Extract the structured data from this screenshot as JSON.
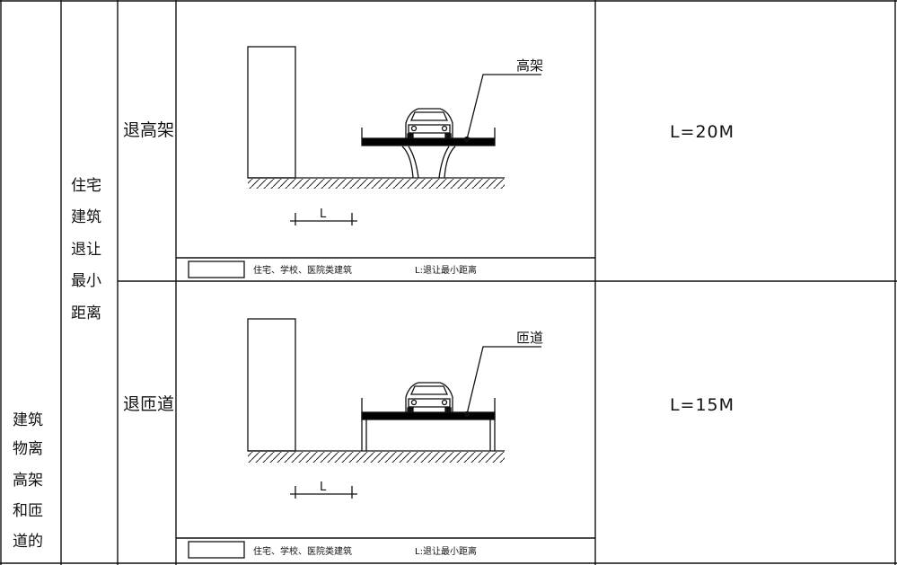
{
  "table": {
    "group_label": [
      "建筑",
      "物离",
      "高架",
      "和匝",
      "道的"
    ],
    "sub_label": [
      "住宅",
      "建筑",
      "退让",
      "最小",
      "距离"
    ],
    "rows": [
      {
        "category": "退高架",
        "requirement": "L=20M",
        "structure_label": "高架",
        "dimension_label": "L",
        "legend_box_text": "住宅、学校、医院类建筑",
        "legend_l_text": "L:退让最小距离"
      },
      {
        "category": "退匝道",
        "requirement": "L=15M",
        "structure_label": "匝道",
        "dimension_label": "L",
        "legend_box_text": "住宅、学校、医院类建筑",
        "legend_l_text": "L:退让最小距离"
      }
    ]
  },
  "colors": {
    "line": "#111111",
    "road": "#000000",
    "background": "#ffffff"
  }
}
